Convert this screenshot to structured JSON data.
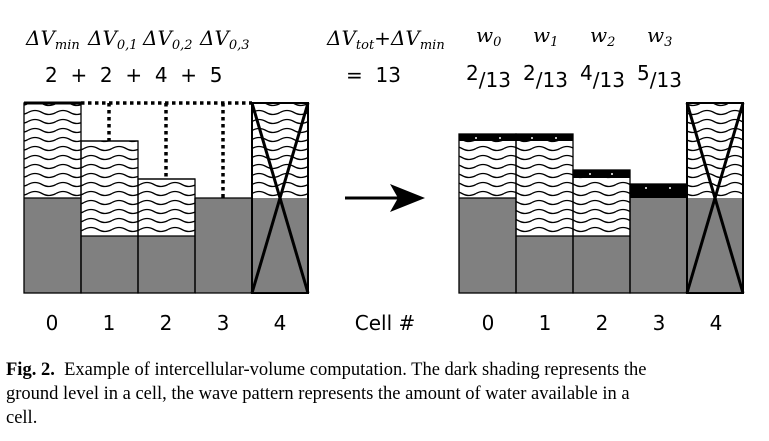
{
  "figure": {
    "top_labels": {
      "dv_min": {
        "main": "ΔV",
        "sub": "min"
      },
      "dv_01": {
        "main": "ΔV",
        "sub": "0,1"
      },
      "dv_02": {
        "main": "ΔV",
        "sub": "0,2"
      },
      "dv_03": {
        "main": "ΔV",
        "sub": "0,3"
      },
      "dv_tot_main": "ΔV",
      "dv_tot_sub": "tot",
      "plus": "+",
      "dv_min2_main": "ΔV",
      "dv_min2_sub": "min"
    },
    "sum_expression": "2  +  2  +  4  +  5",
    "equals": "=  13",
    "weights": [
      {
        "main": "w",
        "sub": "0",
        "num": "2",
        "den": "13"
      },
      {
        "main": "w",
        "sub": "1",
        "num": "2",
        "den": "13"
      },
      {
        "main": "w",
        "sub": "2",
        "num": "4",
        "den": "13"
      },
      {
        "main": "w",
        "sub": "3",
        "num": "5",
        "den": "13"
      }
    ],
    "left_cell_indices": [
      "0",
      "1",
      "2",
      "3",
      "4"
    ],
    "right_cell_indices": [
      "0",
      "1",
      "2",
      "3",
      "4"
    ],
    "axis_label": "Cell #"
  },
  "caption": {
    "label": "Fig. 2.",
    "line1": "Example of intercellular-volume computation. The dark shading represents the",
    "line2": "ground level in a cell, the wave pattern represents the amount of water available in a",
    "line3": "cell."
  },
  "colors": {
    "ground": "#808080",
    "water_bg": "#ffffff",
    "line": "#000000"
  }
}
